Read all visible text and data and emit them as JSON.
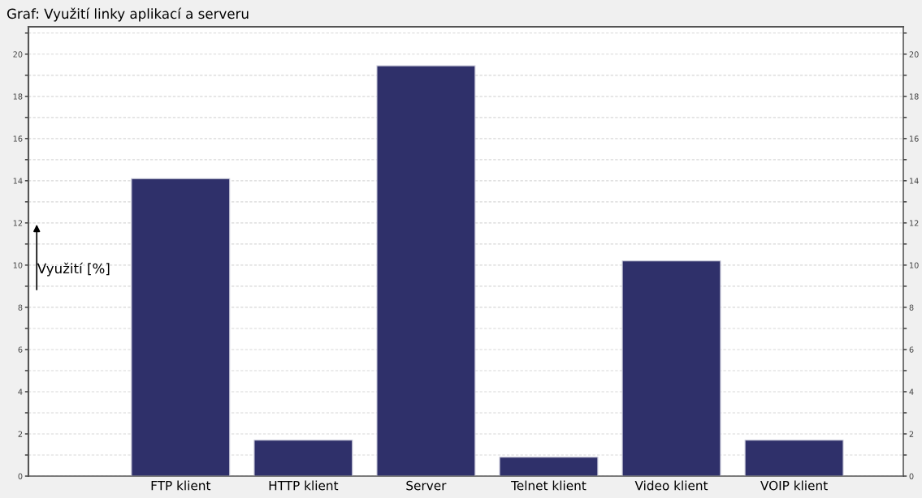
{
  "chart_data": {
    "type": "bar",
    "title": "Graf: Využití linky aplikací a serveru",
    "ylabel": "Využití [%]",
    "categories": [
      "FTP klient",
      "HTTP klient",
      "Server",
      "Telnet klient",
      "Video klient",
      "VOIP klient"
    ],
    "values": [
      14.1,
      1.7,
      19.45,
      0.9,
      10.2,
      1.7
    ],
    "color": "#2f306a",
    "ylim": [
      0,
      21.3
    ],
    "yticks": [
      0,
      {
        "value": 1,
        "label": null
      },
      2,
      {
        "value": 3,
        "label": null
      },
      4,
      {
        "value": 5,
        "label": null
      },
      6,
      {
        "value": 7,
        "label": null
      },
      8,
      {
        "value": 9,
        "label": null
      },
      10,
      {
        "value": 11,
        "label": null
      },
      12,
      {
        "value": 13,
        "label": null
      },
      14,
      {
        "value": 15,
        "label": null
      },
      16,
      {
        "value": 17,
        "label": null
      },
      18,
      {
        "value": 19,
        "label": null
      },
      20,
      {
        "value": 21,
        "label": null
      }
    ],
    "y2lim": [
      0,
      21.3
    ],
    "y2ticks": [
      0,
      {
        "value": 1,
        "label": null
      },
      2,
      {
        "value": 3,
        "label": null
      },
      4,
      {
        "value": 5,
        "label": null
      },
      6,
      {
        "value": 7,
        "label": null
      },
      8,
      {
        "value": 9,
        "label": null
      },
      10,
      {
        "value": 11,
        "label": null
      },
      12,
      {
        "value": 13,
        "label": null
      },
      14,
      {
        "value": 15,
        "label": null
      },
      16,
      {
        "value": 17,
        "label": null
      },
      18,
      {
        "value": 19,
        "label": null
      },
      20,
      {
        "value": 21,
        "label": null
      }
    ],
    "grid": "y"
  }
}
